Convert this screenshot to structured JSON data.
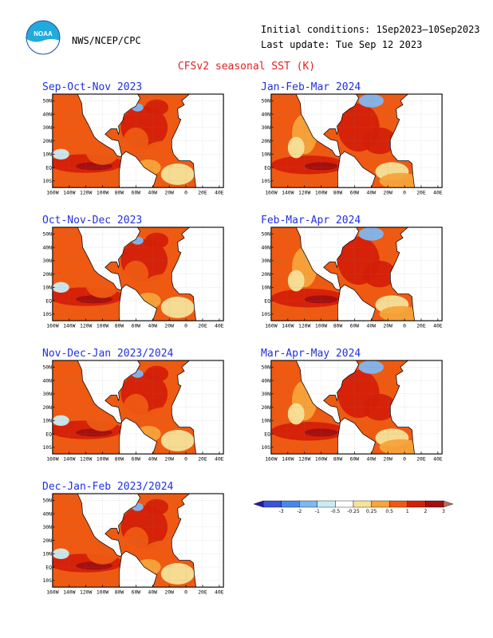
{
  "header": {
    "org": "NWS/NCEP/CPC",
    "initial_conditions": "Initial conditions: 1Sep2023–10Sep2023",
    "last_update": "Last update: Tue Sep 12 2023",
    "logo_text": "NOAA",
    "title": "CFSv2 seasonal SST (K)"
  },
  "axes": {
    "lat_labels": [
      "50N",
      "40N",
      "30N",
      "20N",
      "10N",
      "EQ",
      "10S"
    ],
    "lon_labels": [
      "160W",
      "140W",
      "120W",
      "100W",
      "80W",
      "60W",
      "40W",
      "20W",
      "0",
      "20E",
      "40E"
    ]
  },
  "panels": [
    {
      "title": "Sep-Oct-Nov 2023",
      "variant": 0
    },
    {
      "title": "Jan-Feb-Mar 2024",
      "variant": 1
    },
    {
      "title": "Oct-Nov-Dec 2023",
      "variant": 0
    },
    {
      "title": "Feb-Mar-Apr 2024",
      "variant": 1
    },
    {
      "title": "Nov-Dec-Jan 2023/2024",
      "variant": 0
    },
    {
      "title": "Mar-Apr-May 2024",
      "variant": 1
    },
    {
      "title": "Dec-Jan-Feb 2023/2024",
      "variant": 0
    }
  ],
  "colorbar": {
    "labels": [
      "-3",
      "-2",
      "-1",
      "-0.5",
      "-0.25",
      "0.25",
      "0.5",
      "1",
      "2",
      "3"
    ],
    "colors": [
      "#2a1aa8",
      "#3b52d8",
      "#4a86e8",
      "#7fb7f0",
      "#c9ecf4",
      "#ffffff",
      "#f6e39a",
      "#f7a43a",
      "#ee5a12",
      "#d42008",
      "#a01010",
      "#b87060"
    ]
  }
}
